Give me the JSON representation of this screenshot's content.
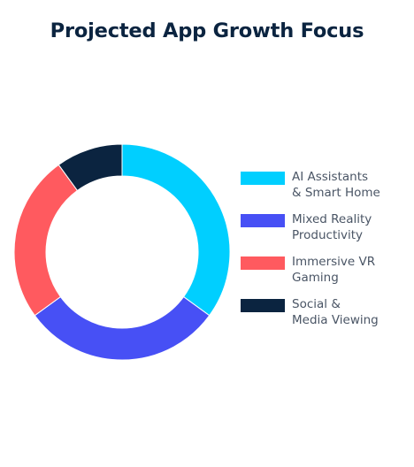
{
  "chart_data": {
    "type": "pie",
    "title": "Projected App Growth Focus",
    "categories": [
      "AI Assistants & Smart Home",
      "Mixed Reality Productivity",
      "Immersive VR Gaming",
      "Social & Media Viewing"
    ],
    "values": [
      35,
      30,
      25,
      10
    ],
    "colors": [
      "#00cfff",
      "#4750f5",
      "#ff5a5f",
      "#0b2440"
    ],
    "legend": {
      "placement": "right",
      "entries": [
        {
          "lines": [
            "AI Assistants",
            "& Smart Home"
          ],
          "color": "#00cfff"
        },
        {
          "lines": [
            "Mixed Reality",
            "Productivity"
          ],
          "color": "#4750f5"
        },
        {
          "lines": [
            "Immersive VR",
            "Gaming"
          ],
          "color": "#ff5a5f"
        },
        {
          "lines": [
            "Social &",
            "Media Viewing"
          ],
          "color": "#0b2440"
        }
      ]
    }
  }
}
